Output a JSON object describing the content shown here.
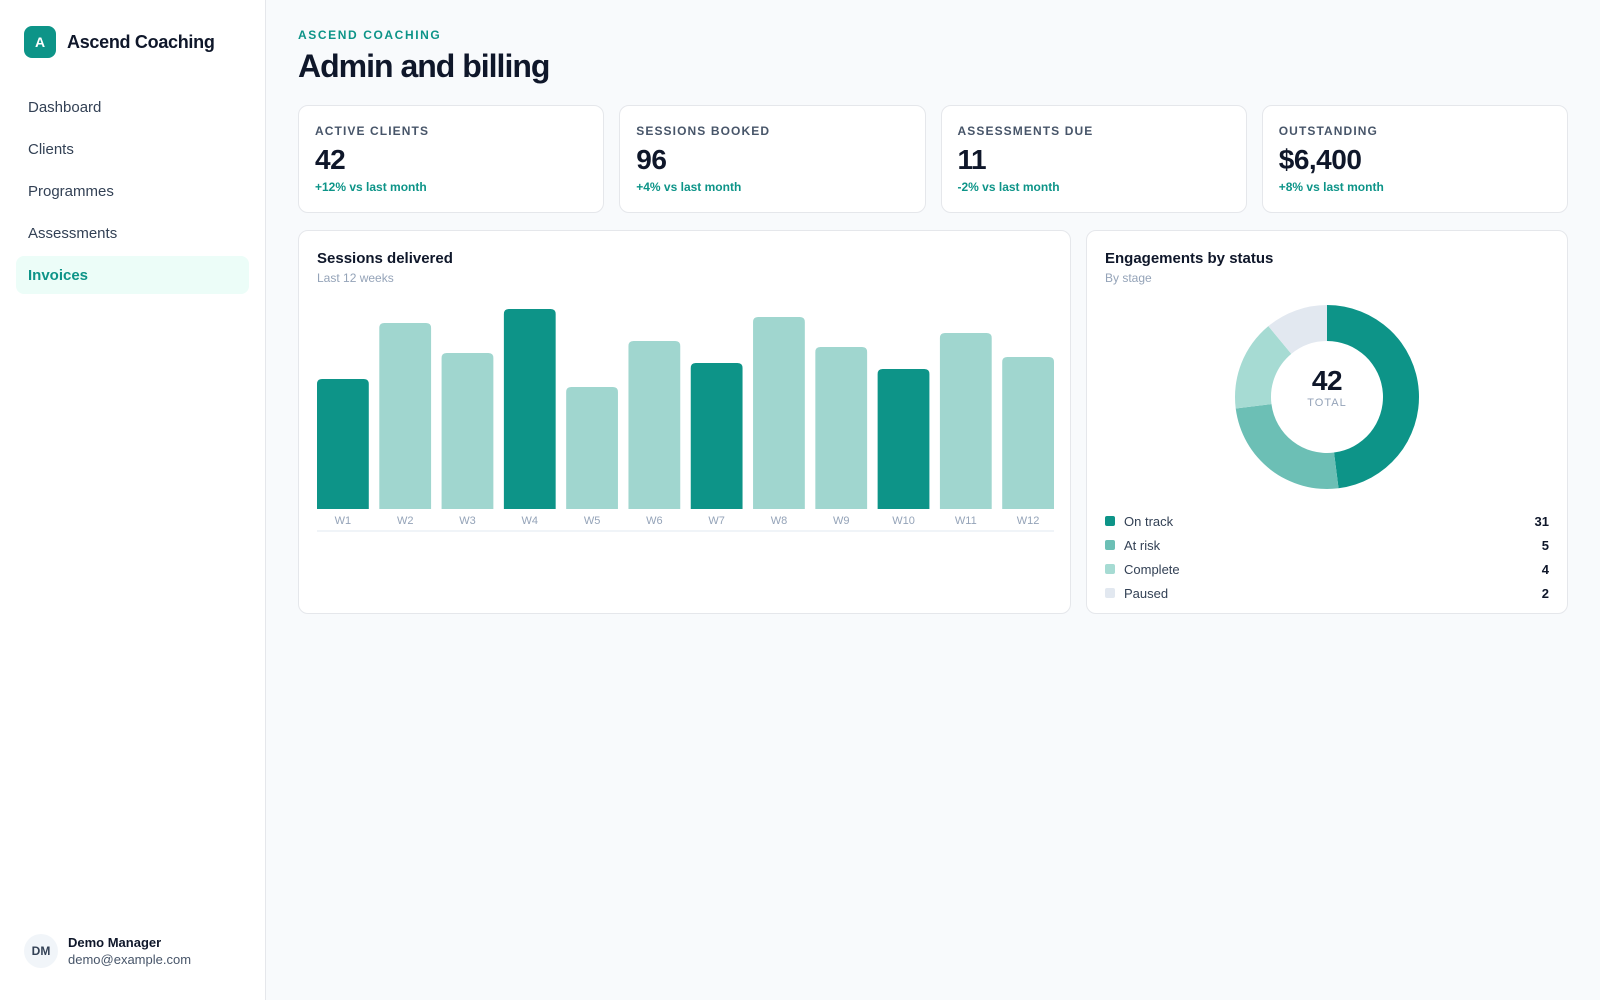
{
  "brand": {
    "initial": "A",
    "name": "Ascend Coaching"
  },
  "sidebar": {
    "items": [
      {
        "label": "Dashboard",
        "active": false
      },
      {
        "label": "Clients",
        "active": false
      },
      {
        "label": "Programmes",
        "active": false
      },
      {
        "label": "Assessments",
        "active": false
      },
      {
        "label": "Invoices",
        "active": true
      }
    ]
  },
  "user": {
    "initials": "DM",
    "name": "Demo Manager",
    "email": "demo@example.com"
  },
  "header": {
    "eyebrow": "ASCEND COACHING",
    "title": "Admin and billing"
  },
  "stats": [
    {
      "label": "ACTIVE CLIENTS",
      "value": "42",
      "delta": "+12% vs last month"
    },
    {
      "label": "SESSIONS BOOKED",
      "value": "96",
      "delta": "+4% vs last month"
    },
    {
      "label": "ASSESSMENTS DUE",
      "value": "11",
      "delta": "-2% vs last month"
    },
    {
      "label": "OUTSTANDING",
      "value": "$6,400",
      "delta": "+8% vs last month"
    }
  ],
  "sessions_card": {
    "title": "Sessions delivered",
    "subtitle": "Last 12 weeks"
  },
  "status_card": {
    "title": "Engagements by status",
    "subtitle": "By stage",
    "total": "42",
    "total_caption": "TOTAL"
  },
  "colors": {
    "accent": "#0d9488",
    "bar_dark": "#0d9488",
    "bar_light": "#a0d6cf",
    "on_track": "#0d9488",
    "at_risk": "#6cbfb5",
    "complete": "#a6dbd3",
    "paused": "#e2e8f0"
  },
  "chart_data": [
    {
      "type": "bar",
      "categories": [
        "W1",
        "W2",
        "W3",
        "W4",
        "W5",
        "W6",
        "W7",
        "W8",
        "W9",
        "W10",
        "W11",
        "W12"
      ],
      "values": [
        65,
        93,
        78,
        100,
        61,
        84,
        73,
        96,
        81,
        70,
        88,
        76
      ],
      "highlighted": [
        true,
        false,
        false,
        true,
        false,
        false,
        true,
        false,
        false,
        true,
        false,
        false
      ],
      "ylim": [
        0,
        100
      ]
    },
    {
      "type": "pie",
      "categories": [
        "On track",
        "At risk",
        "Complete",
        "Paused"
      ],
      "values": [
        31,
        5,
        4,
        2
      ],
      "slice_values": [
        48,
        25,
        16,
        11
      ]
    }
  ]
}
